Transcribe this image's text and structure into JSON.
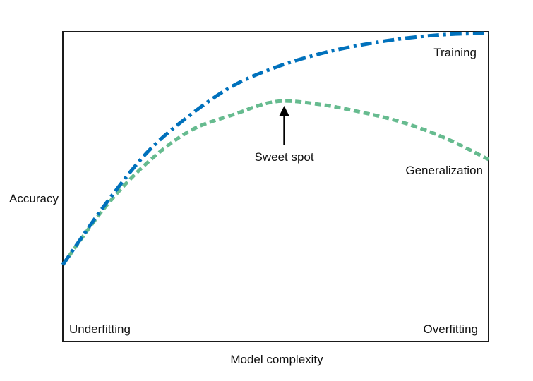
{
  "chart_data": {
    "type": "line",
    "title": "",
    "xlabel": "Model complexity",
    "ylabel": "Accuracy",
    "grid": false,
    "x_ticks": [],
    "y_ticks": [],
    "xlim": [
      0,
      1
    ],
    "ylim": [
      0,
      1
    ],
    "series": [
      {
        "name": "Training",
        "color": "#0071bc",
        "line_style": "dash-dot",
        "x": [
          0.0,
          0.1,
          0.2,
          0.3,
          0.4,
          0.5,
          0.6,
          0.7,
          0.8,
          0.9,
          1.0
        ],
        "values": [
          0.12,
          0.35,
          0.55,
          0.69,
          0.8,
          0.87,
          0.92,
          0.955,
          0.98,
          0.995,
          1.0
        ]
      },
      {
        "name": "Generalization",
        "color": "#66bb8f",
        "line_style": "dashed",
        "x": [
          0.0,
          0.1,
          0.2,
          0.3,
          0.4,
          0.5,
          0.6,
          0.7,
          0.8,
          0.9,
          1.0
        ],
        "values": [
          0.12,
          0.34,
          0.51,
          0.63,
          0.69,
          0.74,
          0.73,
          0.7,
          0.66,
          0.6,
          0.52
        ]
      }
    ],
    "annotations": {
      "sweet_spot": "Sweet spot",
      "sweet_spot_x": 0.52,
      "sweet_spot_y": 0.74,
      "underfitting": "Underfitting",
      "overfitting": "Overfitting"
    }
  }
}
